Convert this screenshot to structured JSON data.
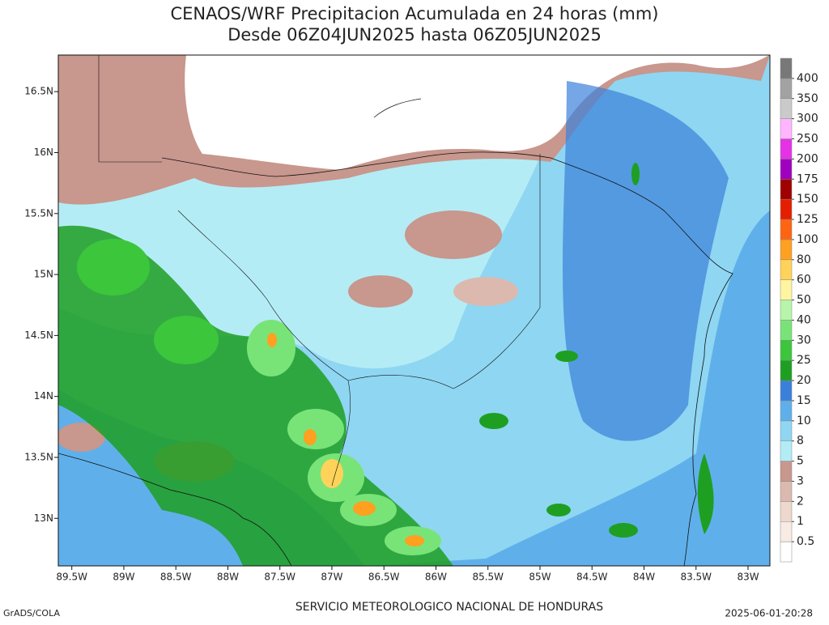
{
  "header": {
    "title": "CENAOS/WRF Precipitacion Acumulada en 24 horas (mm)",
    "subtitle": "Desde 06Z04JUN2025 hasta 06Z05JUN2025"
  },
  "map": {
    "lon_range": [
      -89.63,
      -82.79
    ],
    "lat_range": [
      12.61,
      16.8
    ],
    "lon_ticks": [
      {
        "value": -89.5,
        "label": "89.5W"
      },
      {
        "value": -89,
        "label": "89W"
      },
      {
        "value": -88.5,
        "label": "88.5W"
      },
      {
        "value": -88,
        "label": "88W"
      },
      {
        "value": -87.5,
        "label": "87.5W"
      },
      {
        "value": -87,
        "label": "87W"
      },
      {
        "value": -86.5,
        "label": "86.5W"
      },
      {
        "value": -86,
        "label": "86W"
      },
      {
        "value": -85.5,
        "label": "85.5W"
      },
      {
        "value": -85,
        "label": "85W"
      },
      {
        "value": -84.5,
        "label": "84.5W"
      },
      {
        "value": -84,
        "label": "84W"
      },
      {
        "value": -83.5,
        "label": "83.5W"
      },
      {
        "value": -83,
        "label": "83W"
      }
    ],
    "lat_ticks": [
      {
        "value": 13,
        "label": "13N"
      },
      {
        "value": 13.5,
        "label": "13.5N"
      },
      {
        "value": 14,
        "label": "14N"
      },
      {
        "value": 14.5,
        "label": "14.5N"
      },
      {
        "value": 15,
        "label": "15N"
      },
      {
        "value": 15.5,
        "label": "15.5N"
      },
      {
        "value": 16,
        "label": "16N"
      },
      {
        "value": 16.5,
        "label": "16.5N"
      }
    ]
  },
  "colorbar": {
    "levels": [
      0.5,
      1,
      2,
      3,
      5,
      8,
      10,
      15,
      20,
      25,
      30,
      40,
      50,
      60,
      80,
      100,
      125,
      150,
      175,
      200,
      250,
      300,
      350,
      400
    ],
    "colors": [
      "#ffffff",
      "#f7ebe4",
      "#eed8ce",
      "#dcb9af",
      "#c8978d",
      "#b4ecf5",
      "#8fd6f2",
      "#5fb0ea",
      "#3a80da",
      "#1e9f22",
      "#3cc63c",
      "#78e478",
      "#b6f5aa",
      "#fff5a0",
      "#ffd25a",
      "#ffa020",
      "#ff6412",
      "#e61e00",
      "#a00000",
      "#a000c0",
      "#e632e6",
      "#ffb6ff",
      "#cacaca",
      "#a2a2a2",
      "#787878"
    ]
  },
  "footer": {
    "left": "GrADS/COLA",
    "center": "SERVICIO METEOROLOGICO NACIONAL DE HONDURAS",
    "right": "2025-06-01-20:28"
  }
}
